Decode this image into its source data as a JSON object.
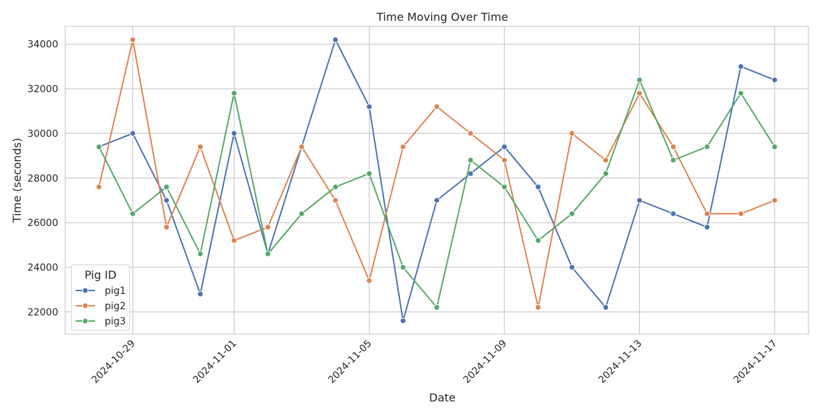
{
  "chart_data": {
    "type": "line",
    "title": "Time Moving Over Time",
    "xlabel": "Date",
    "ylabel": "Time (seconds)",
    "x": [
      "2024-10-28",
      "2024-10-29",
      "2024-10-30",
      "2024-10-31",
      "2024-11-01",
      "2024-11-02",
      "2024-11-03",
      "2024-11-04",
      "2024-11-05",
      "2024-11-06",
      "2024-11-07",
      "2024-11-08",
      "2024-11-09",
      "2024-11-10",
      "2024-11-11",
      "2024-11-12",
      "2024-11-13",
      "2024-11-14",
      "2024-11-15",
      "2024-11-16",
      "2024-11-17"
    ],
    "x_ticks": [
      "2024-10-29",
      "2024-11-01",
      "2024-11-05",
      "2024-11-09",
      "2024-11-13",
      "2024-11-17"
    ],
    "xlim": [
      "2024-10-27",
      "2024-11-18"
    ],
    "y_ticks": [
      22000,
      24000,
      26000,
      28000,
      30000,
      32000,
      34000
    ],
    "ylim": [
      21000,
      34800
    ],
    "grid": true,
    "legend": {
      "title": "Pig ID",
      "placement": "lower-left"
    },
    "series": [
      {
        "name": "pig1",
        "color": "#4c72b0",
        "values": [
          29400,
          30000,
          27000,
          22800,
          30000,
          24600,
          29400,
          34200,
          31200,
          21600,
          27000,
          28200,
          29400,
          27600,
          24000,
          22200,
          27000,
          26400,
          25800,
          33000,
          32400
        ]
      },
      {
        "name": "pig2",
        "color": "#dd8452",
        "values": [
          27600,
          34200,
          25800,
          29400,
          25200,
          25800,
          29400,
          27000,
          23400,
          29400,
          31200,
          30000,
          28800,
          22200,
          30000,
          28800,
          31800,
          29400,
          26400,
          26400,
          27000
        ]
      },
      {
        "name": "pig3",
        "color": "#55a868",
        "values": [
          29400,
          26400,
          27600,
          24600,
          31800,
          24600,
          26400,
          27600,
          28200,
          24000,
          22200,
          28800,
          27600,
          25200,
          26400,
          28200,
          32400,
          28800,
          29400,
          31800,
          29400
        ]
      }
    ]
  }
}
